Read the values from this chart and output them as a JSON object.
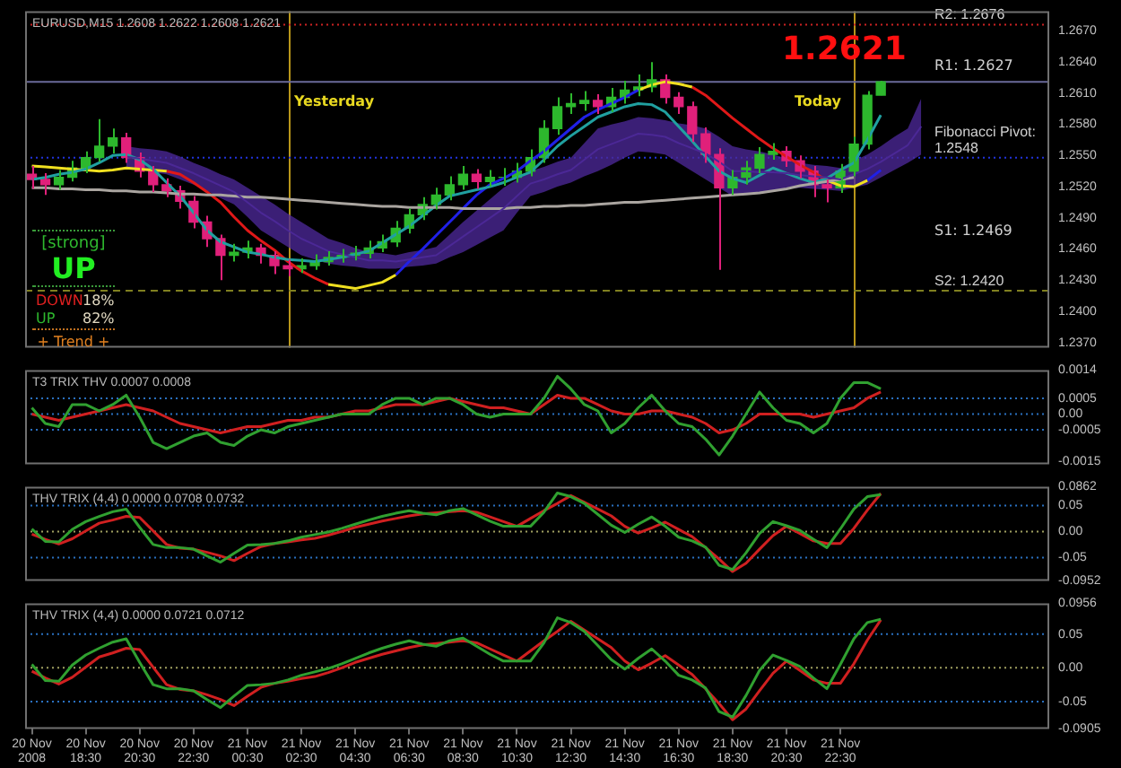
{
  "chart_data": [
    {
      "type": "candlestick",
      "title": "EURUSD,M15 1.2608 1.2622 1.2608 1.2621",
      "categories": [
        null,
        null,
        null,
        null,
        null,
        null,
        null,
        null,
        null,
        null,
        null,
        null,
        null,
        null,
        null,
        null,
        null,
        null,
        null,
        null,
        null,
        null,
        null,
        null,
        null,
        null,
        null,
        null,
        null,
        null,
        null,
        null,
        null,
        null,
        null,
        null,
        null,
        null,
        null,
        null,
        null,
        null,
        null,
        null,
        null,
        null,
        null,
        null,
        null,
        null,
        null,
        null,
        null,
        null,
        null,
        null,
        null,
        null,
        null,
        null,
        null,
        null,
        null,
        null,
        null,
        null,
        null,
        null,
        null,
        null,
        null,
        null,
        null,
        null,
        null,
        null
      ],
      "ohlc": [
        [
          1.2532,
          1.254,
          1.2518,
          1.2527
        ],
        [
          1.2527,
          1.2533,
          1.2512,
          1.2522
        ],
        [
          1.2522,
          1.2536,
          1.2517,
          1.2529
        ],
        [
          1.2529,
          1.2545,
          1.2525,
          1.2538
        ],
        [
          1.2538,
          1.2554,
          1.2533,
          1.2548
        ],
        [
          1.2548,
          1.2585,
          1.2544,
          1.2559
        ],
        [
          1.2559,
          1.2576,
          1.2552,
          1.2567
        ],
        [
          1.2567,
          1.2572,
          1.2543,
          1.2548
        ],
        [
          1.2548,
          1.2553,
          1.2529,
          1.2535
        ],
        [
          1.2535,
          1.254,
          1.2515,
          1.2522
        ],
        [
          1.2522,
          1.2528,
          1.251,
          1.2516
        ],
        [
          1.2516,
          1.2521,
          1.2499,
          1.2506
        ],
        [
          1.2506,
          1.2511,
          1.248,
          1.2486
        ],
        [
          1.2486,
          1.2492,
          1.2462,
          1.247
        ],
        [
          1.247,
          1.2474,
          1.243,
          1.2454
        ],
        [
          1.2454,
          1.2465,
          1.2448,
          1.2457
        ],
        [
          1.2457,
          1.2468,
          1.2451,
          1.2461
        ],
        [
          1.2461,
          1.2465,
          1.2446,
          1.2454
        ],
        [
          1.2454,
          1.2458,
          1.2436,
          1.2444
        ],
        [
          1.2444,
          1.245,
          1.2434,
          1.2441
        ],
        [
          1.2441,
          1.2451,
          1.2437,
          1.2444
        ],
        [
          1.2444,
          1.2455,
          1.244,
          1.2448
        ],
        [
          1.2448,
          1.2458,
          1.2444,
          1.2452
        ],
        [
          1.2452,
          1.246,
          1.2447,
          1.2454
        ],
        [
          1.2454,
          1.2463,
          1.2449,
          1.2456
        ],
        [
          1.2456,
          1.2468,
          1.2451,
          1.2461
        ],
        [
          1.2461,
          1.2474,
          1.2457,
          1.2467
        ],
        [
          1.2467,
          1.2487,
          1.2462,
          1.248
        ],
        [
          1.248,
          1.2499,
          1.2475,
          1.2493
        ],
        [
          1.2493,
          1.251,
          1.2488,
          1.2503
        ],
        [
          1.2503,
          1.2519,
          1.2498,
          1.2512
        ],
        [
          1.2512,
          1.253,
          1.2507,
          1.2522
        ],
        [
          1.2522,
          1.254,
          1.2517,
          1.2532
        ],
        [
          1.2532,
          1.2537,
          1.2518,
          1.2525
        ],
        [
          1.2525,
          1.2536,
          1.252,
          1.2529
        ],
        [
          1.2529,
          1.2538,
          1.2521,
          1.2529
        ],
        [
          1.2529,
          1.2543,
          1.2524,
          1.2535
        ],
        [
          1.2535,
          1.2556,
          1.253,
          1.2548
        ],
        [
          1.2548,
          1.2584,
          1.2543,
          1.2576
        ],
        [
          1.2576,
          1.2606,
          1.257,
          1.2597
        ],
        [
          1.2597,
          1.261,
          1.259,
          1.26
        ],
        [
          1.26,
          1.2612,
          1.2593,
          1.2603
        ],
        [
          1.2603,
          1.2609,
          1.259,
          1.2597
        ],
        [
          1.2597,
          1.2615,
          1.2592,
          1.2606
        ],
        [
          1.2606,
          1.2622,
          1.26,
          1.2613
        ],
        [
          1.2613,
          1.2628,
          1.2607,
          1.2616
        ],
        [
          1.2616,
          1.264,
          1.2611,
          1.2623
        ],
        [
          1.2623,
          1.2628,
          1.26,
          1.2606
        ],
        [
          1.2606,
          1.2611,
          1.259,
          1.2597
        ],
        [
          1.2597,
          1.2602,
          1.2563,
          1.2571
        ],
        [
          1.2571,
          1.2577,
          1.2543,
          1.2551
        ],
        [
          1.2551,
          1.2557,
          1.244,
          1.2519
        ],
        [
          1.2519,
          1.2536,
          1.2512,
          1.2529
        ],
        [
          1.2529,
          1.2545,
          1.2522,
          1.2538
        ],
        [
          1.2538,
          1.2558,
          1.2533,
          1.2551
        ],
        [
          1.2551,
          1.2562,
          1.2546,
          1.2554
        ],
        [
          1.2554,
          1.2559,
          1.2539,
          1.2545
        ],
        [
          1.2545,
          1.255,
          1.2528,
          1.2535
        ],
        [
          1.2535,
          1.254,
          1.251,
          1.2522
        ],
        [
          1.2522,
          1.2527,
          1.2505,
          1.2519
        ],
        [
          1.2519,
          1.2542,
          1.2514,
          1.2535
        ],
        [
          1.2535,
          1.2568,
          1.253,
          1.2561
        ],
        [
          1.2561,
          1.2612,
          1.2556,
          1.2608
        ],
        [
          1.2608,
          1.2622,
          1.2608,
          1.2621
        ],
        null,
        null,
        null,
        null,
        null,
        null,
        null,
        null,
        null,
        null,
        null,
        null
      ],
      "colors": [
        "#e0207a",
        "#e0207a",
        "#2db82d",
        "#2db82d",
        "#2db82d",
        "#2db82d",
        "#2db82d",
        "#e0207a",
        "#e0207a",
        "#e0207a",
        "#e0207a",
        "#e0207a",
        "#e0207a",
        "#e0207a",
        "#e0207a",
        "#2db82d",
        "#2db82d",
        "#e0207a",
        "#e0207a",
        "#e0207a",
        "#2db82d",
        "#2db82d",
        "#2db82d",
        "#2db82d",
        "#2db82d",
        "#2db82d",
        "#2db82d",
        "#2db82d",
        "#2db82d",
        "#2db82d",
        "#2db82d",
        "#2db82d",
        "#2db82d",
        "#e0207a",
        "#2db82d",
        "#2db82d",
        "#2db82d",
        "#2db82d",
        "#2db82d",
        "#2db82d",
        "#2db82d",
        "#2db82d",
        "#e0207a",
        "#2db82d",
        "#2db82d",
        "#2db82d",
        "#2db82d",
        "#e0207a",
        "#e0207a",
        "#e0207a",
        "#e0207a",
        "#e0207a",
        "#2db82d",
        "#2db82d",
        "#2db82d",
        "#2db82d",
        "#e0207a",
        "#e0207a",
        "#e0207a",
        "#e0207a",
        "#2db82d",
        "#2db82d",
        "#2db82d",
        "#2db82d",
        null,
        null,
        null,
        null,
        null,
        null,
        null,
        null,
        null,
        null,
        null,
        null
      ],
      "series": [
        {
          "type": "line",
          "color": "#4b2896",
          "values": [
            null,
            null,
            null,
            null,
            null,
            null,
            null,
            1.2549,
            1.2547,
            1.2545,
            1.2543,
            1.2538,
            1.2533,
            1.2527,
            1.2521,
            1.2515,
            1.2505,
            1.2495,
            1.2487,
            1.2478,
            1.247,
            1.2464,
            1.2458,
            1.2455,
            1.2452,
            1.2449,
            1.2449,
            1.2448,
            1.245,
            1.2452,
            1.2454,
            1.2463,
            1.2472,
            1.2481,
            1.249,
            1.2499,
            1.2511,
            1.2523,
            1.2527,
            1.2532,
            1.2536,
            1.2546,
            1.2556,
            1.2561,
            1.2566,
            1.2571,
            1.257,
            1.2568,
            1.2562,
            1.2557,
            1.2552,
            1.2544,
            1.2535,
            1.2535,
            1.2534,
            1.2534,
            1.2533,
            1.2531,
            1.253,
            1.2529,
            1.2527,
            1.2532,
            1.2537,
            1.2544,
            1.2552,
            1.256,
            1.2578,
            null,
            null,
            null,
            null,
            null,
            null,
            null,
            null,
            null
          ],
          "lower": [
            null,
            null,
            null,
            null,
            null,
            null,
            null,
            1.2538,
            1.2536,
            1.2534,
            1.2532,
            1.2527,
            1.2522,
            1.2516,
            1.2509,
            1.2503,
            1.2491,
            1.2478,
            1.247,
            1.2462,
            1.2454,
            1.245,
            1.2446,
            1.2444,
            1.2443,
            1.2441,
            1.2441,
            1.2441,
            1.2443,
            1.2444,
            1.2446,
            1.2452,
            1.2457,
            1.2464,
            1.2471,
            1.2478,
            1.2495,
            1.2511,
            1.2515,
            1.252,
            1.2524,
            1.253,
            1.2535,
            1.2541,
            1.2548,
            1.2554,
            1.2553,
            1.2551,
            1.2543,
            1.2535,
            1.2527,
            1.2519,
            1.2511,
            1.2513,
            1.2514,
            1.2516,
            1.2518,
            1.2519,
            1.2518,
            1.2517,
            1.2516,
            1.2519,
            1.2522,
            1.2529,
            1.2536,
            1.2543,
            1.2551,
            null,
            null,
            null,
            null,
            null,
            null,
            null,
            null,
            null
          ],
          "upper": [
            null,
            null,
            null,
            null,
            null,
            null,
            null,
            1.2559,
            1.2557,
            1.2556,
            1.2554,
            1.2549,
            1.2543,
            1.2538,
            1.2532,
            1.2527,
            1.2519,
            1.2511,
            1.2503,
            1.2494,
            1.2486,
            1.2478,
            1.247,
            1.2466,
            1.2461,
            1.2457,
            1.2456,
            1.2454,
            1.2457,
            1.2459,
            1.2462,
            1.2474,
            1.2486,
            1.2497,
            1.2508,
            1.2519,
            1.2527,
            1.2535,
            1.2539,
            1.2544,
            1.2548,
            1.2562,
            1.2576,
            1.258,
            1.2583,
            1.2587,
            1.2586,
            1.2584,
            1.2581,
            1.2579,
            1.2576,
            1.2568,
            1.2559,
            1.2556,
            1.2554,
            1.2551,
            1.2547,
            1.2543,
            1.2541,
            1.254,
            1.2538,
            1.2545,
            1.2551,
            1.2559,
            1.2568,
            1.2576,
            1.2605,
            null,
            null,
            null,
            null,
            null,
            null,
            null,
            null,
            null
          ]
        },
        {
          "type": "line",
          "color": "#aaa5a0",
          "values": [
            1.2519,
            1.2519,
            1.2518,
            1.2518,
            1.2517,
            1.2517,
            1.2516,
            1.2516,
            1.2515,
            1.2515,
            1.2514,
            1.2513,
            1.2513,
            1.2512,
            1.2512,
            1.2511,
            1.251,
            1.251,
            1.2509,
            1.2508,
            1.2507,
            1.2506,
            1.2505,
            1.2504,
            1.2503,
            1.2502,
            1.2501,
            1.2501,
            1.25,
            1.25,
            1.25,
            1.25,
            1.2499,
            1.2499,
            1.2499,
            1.2499,
            1.25,
            1.25,
            1.2501,
            1.2501,
            1.2502,
            1.2502,
            1.2503,
            1.2504,
            1.2505,
            1.2505,
            1.2506,
            1.2507,
            1.2508,
            1.2509,
            1.251,
            1.2511,
            1.2512,
            1.2513,
            1.2514,
            1.2516,
            1.2518,
            1.2521,
            1.2523,
            1.2525,
            1.2527,
            1.2529,
            null,
            null,
            null,
            null,
            null,
            null,
            null,
            null,
            null,
            null,
            null,
            null,
            null,
            null
          ]
        },
        {
          "type": "line",
          "color": "#20a0a0",
          "values": [
            1.2527,
            1.2529,
            1.2532,
            1.2534,
            1.2537,
            1.2543,
            1.255,
            1.2551,
            1.2546,
            1.2537,
            1.2524,
            1.2511,
            1.2495,
            1.2478,
            1.2467,
            1.2462,
            1.2457,
            1.2455,
            1.2452,
            1.245,
            1.2449,
            1.2448,
            1.245,
            1.2452,
            1.2455,
            1.2458,
            1.2466,
            1.2474,
            1.2482,
            1.2492,
            1.2502,
            1.2511,
            1.2514,
            1.2517,
            1.252,
            1.2524,
            1.2529,
            1.2534,
            1.2546,
            1.2559,
            1.2569,
            1.2578,
            1.2587,
            1.2592,
            1.2597,
            1.26,
            1.2599,
            1.2592,
            1.2578,
            1.2564,
            1.2549,
            1.2535,
            1.2528,
            1.2524,
            1.2531,
            1.2538,
            1.2533,
            1.2528,
            1.2524,
            1.2528,
            1.2536,
            1.2543,
            1.2565,
            1.2589,
            null,
            null,
            null,
            null,
            null,
            null,
            null,
            null,
            null,
            null,
            null,
            null
          ]
        },
        {
          "type": "line",
          "color": "#f0e020",
          "values": [
            1.254,
            1.2539,
            1.2538,
            1.2537,
            1.2536,
            1.2535,
            1.2536,
            1.2538,
            1.2537,
            1.2536,
            1.2535,
            null,
            null,
            null,
            null,
            null,
            null,
            null,
            null,
            null,
            null,
            null,
            1.2426,
            1.2424,
            1.2422,
            1.2425,
            1.2428,
            1.2435,
            null,
            null,
            null,
            null,
            null,
            null,
            null,
            null,
            null,
            null,
            null,
            null,
            null,
            null,
            null,
            null,
            null,
            1.2613,
            1.2618,
            1.2621,
            1.2619,
            1.2616,
            null,
            null,
            null,
            null,
            null,
            null,
            null,
            null,
            null,
            1.2526,
            1.2521,
            1.252,
            1.2526,
            null,
            null,
            null,
            null,
            null,
            null,
            null,
            null,
            null,
            null,
            null,
            null,
            null
          ]
        },
        {
          "type": "line",
          "color": "#e01818",
          "values": [
            null,
            null,
            null,
            null,
            null,
            null,
            null,
            null,
            null,
            null,
            1.2535,
            1.2532,
            1.2524,
            1.2515,
            1.2505,
            1.2491,
            1.2478,
            1.2468,
            1.2459,
            1.2448,
            1.2439,
            1.2432,
            1.2426,
            null,
            null,
            null,
            null,
            null,
            null,
            null,
            null,
            null,
            null,
            null,
            null,
            null,
            null,
            null,
            null,
            null,
            null,
            null,
            null,
            null,
            null,
            null,
            null,
            null,
            null,
            1.2616,
            1.2608,
            1.2597,
            1.2586,
            1.2576,
            1.2566,
            1.2557,
            1.2549,
            1.2541,
            1.2534,
            1.2526,
            null,
            null,
            null,
            null,
            null,
            null,
            null,
            null,
            null,
            null,
            null,
            null,
            null,
            null,
            null,
            null
          ]
        },
        {
          "type": "line",
          "color": "#2020e8",
          "values": [
            null,
            null,
            null,
            null,
            null,
            null,
            null,
            null,
            null,
            null,
            null,
            null,
            null,
            null,
            null,
            null,
            null,
            null,
            null,
            null,
            null,
            null,
            null,
            null,
            null,
            null,
            null,
            1.2435,
            1.2448,
            1.246,
            1.2473,
            1.2486,
            1.2499,
            1.2512,
            1.2522,
            1.2528,
            1.2535,
            1.2545,
            1.2554,
            1.2565,
            1.2576,
            1.2587,
            1.2594,
            1.26,
            1.2606,
            1.2613,
            null,
            null,
            null,
            null,
            null,
            null,
            null,
            null,
            null,
            null,
            null,
            null,
            null,
            null,
            null,
            null,
            1.2526,
            1.2536,
            null,
            null,
            null,
            null,
            null,
            null,
            null,
            null,
            null,
            null,
            null,
            null
          ]
        }
      ],
      "ylim": [
        1.2365,
        1.2689
      ],
      "yticks": [
        {
          "value": 1.237,
          "label": "1.2370"
        },
        {
          "value": 1.24,
          "label": "1.2400"
        },
        {
          "value": 1.243,
          "label": "1.2430"
        },
        {
          "value": 1.246,
          "label": "1.2460"
        },
        {
          "value": 1.249,
          "label": "1.2490"
        },
        {
          "value": 1.252,
          "label": "1.2520"
        },
        {
          "value": 1.255,
          "label": "1.2550"
        },
        {
          "value": 1.258,
          "label": "1.2580"
        },
        {
          "value": 1.261,
          "label": "1.2610"
        },
        {
          "value": 1.264,
          "label": "1.2640"
        },
        {
          "value": 1.267,
          "label": "1.2670"
        }
      ],
      "tick_labels": "y",
      "ref_lines": [
        {
          "axis": "y",
          "value": 1.2621,
          "color": "#6a6a9a"
        },
        {
          "axis": "y",
          "value": 1.2676,
          "label": "R2: 1.2676",
          "color": "#cc2222",
          "line_style": "dotted"
        },
        {
          "axis": "y",
          "value": 1.2548,
          "label": "Fibonacci Pivot: 1.2548",
          "color": "#2233dd",
          "line_style": "dotted"
        },
        {
          "axis": "y",
          "value": 1.242,
          "label": "S2: 1.2420",
          "color": "#808020",
          "line_style": "dashed"
        }
      ],
      "annotations": [
        "[strong]",
        "UP",
        "DOWN",
        "18%",
        "UP",
        "82%",
        "+ Trend +",
        "1.2621",
        "R1: 1.2627",
        "S1: 1.2469",
        "Yesterday",
        "Today"
      ]
    },
    {
      "type": "line",
      "title": "T3 TRIX THV 0.0007 0.0008",
      "categories": [
        null,
        null,
        null,
        null,
        null,
        null,
        null,
        null,
        null,
        null,
        null,
        null,
        null,
        null,
        null,
        null,
        null,
        null,
        null,
        null,
        null,
        null,
        null,
        null,
        null,
        null,
        null,
        null,
        null,
        null,
        null,
        null,
        null,
        null,
        null,
        null,
        null,
        null,
        null,
        null,
        null,
        null,
        null,
        null,
        null,
        null,
        null,
        null,
        null,
        null,
        null,
        null,
        null,
        null,
        null,
        null,
        null,
        null,
        null,
        null,
        null,
        null,
        null,
        null,
        null,
        null,
        null,
        null,
        null,
        null,
        null,
        null,
        null,
        null,
        null,
        null
      ],
      "series": [
        {
          "color": "#30a030",
          "values": [
            0.0002,
            -0.0003,
            -0.0004,
            0.0003,
            0.0003,
            0.0001,
            0.0003,
            0.0006,
            -0.0001,
            -0.0009,
            -0.0011,
            -0.0009,
            -0.0007,
            -0.0006,
            -0.0009,
            -0.001,
            -0.0007,
            -0.0005,
            -0.0006,
            -0.0004,
            -0.0003,
            -0.0002,
            -0.0001,
            0.0,
            0.0,
            0.0,
            0.0003,
            0.0005,
            0.0005,
            0.0003,
            0.0005,
            0.0005,
            0.0003,
            0.0,
            -0.0001,
            0.0,
            0.0,
            0.0,
            0.0005,
            0.0012,
            0.0008,
            0.0003,
            0.0001,
            -0.0006,
            -0.0003,
            0.0002,
            0.0006,
            0.0001,
            -0.0003,
            -0.0004,
            -0.0008,
            -0.0013,
            -0.0007,
            0.0,
            0.0007,
            0.0002,
            -0.0002,
            -0.0003,
            -0.0006,
            -0.0003,
            0.0005,
            0.001,
            0.001,
            0.0008,
            null,
            null,
            null,
            null,
            null,
            null,
            null,
            null,
            null,
            null,
            null,
            null
          ]
        },
        {
          "color": "#d02020",
          "values": [
            0.0,
            -0.0001,
            -0.0002,
            -0.0001,
            0.0,
            0.0001,
            0.0002,
            0.0003,
            0.0002,
            0.0001,
            -0.0001,
            -0.0003,
            -0.0004,
            -0.0005,
            -0.0006,
            -0.0005,
            -0.0004,
            -0.0004,
            -0.0003,
            -0.0002,
            -0.0002,
            -0.0001,
            -0.0001,
            0.0,
            0.0001,
            0.0001,
            0.0002,
            0.0003,
            0.0003,
            0.0003,
            0.0004,
            0.0005,
            0.0004,
            0.0003,
            0.0002,
            0.0002,
            0.0001,
            0.0,
            0.0003,
            0.0006,
            0.0005,
            0.0005,
            0.0003,
            0.0001,
            0.0,
            0.0,
            0.0001,
            0.0001,
            0.0,
            -0.0001,
            -0.0003,
            -0.0006,
            -0.0005,
            -0.0003,
            0.0,
            0.0,
            0.0,
            0.0,
            -0.0001,
            0.0,
            0.0001,
            0.0002,
            0.0005,
            0.0007,
            null,
            null,
            null,
            null,
            null,
            null,
            null,
            null,
            null,
            null,
            null,
            null
          ]
        }
      ],
      "ylim": [
        -0.0016,
        0.0014
      ],
      "yticks": [
        0.0014,
        0.0005,
        {
          "value": 0,
          "label": "0.00"
        },
        -0.0005,
        -0.0015
      ],
      "tick_labels": "y",
      "ref_lines": [
        {
          "axis": "y",
          "value": 0.0005,
          "color": "#2a70c0",
          "line_style": "dotted"
        },
        {
          "axis": "y",
          "value": 0,
          "color": "#2a70c0",
          "line_style": "dotted"
        },
        {
          "axis": "y",
          "value": -0.0005,
          "color": "#2a70c0",
          "line_style": "dotted"
        }
      ]
    },
    {
      "type": "line",
      "title": "THV TRIX (4,4) 0.0000 0.0708 0.0732",
      "categories": [
        null,
        null,
        null,
        null,
        null,
        null,
        null,
        null,
        null,
        null,
        null,
        null,
        null,
        null,
        null,
        null,
        null,
        null,
        null,
        null,
        null,
        null,
        null,
        null,
        null,
        null,
        null,
        null,
        null,
        null,
        null,
        null,
        null,
        null,
        null,
        null,
        null,
        null,
        null,
        null,
        null,
        null,
        null,
        null,
        null,
        null,
        null,
        null,
        null,
        null,
        null,
        null,
        null,
        null,
        null,
        null,
        null,
        null,
        null,
        null,
        null,
        null,
        null,
        null,
        null,
        null,
        null,
        null,
        null,
        null,
        null,
        null,
        null,
        null,
        null,
        null
      ],
      "series": [
        {
          "color": "#30a030",
          "values": [
            0.005,
            -0.019,
            -0.02,
            0.004,
            0.019,
            0.029,
            0.038,
            0.043,
            0.008,
            -0.025,
            -0.031,
            -0.031,
            -0.034,
            -0.047,
            -0.059,
            -0.042,
            -0.026,
            -0.025,
            -0.023,
            -0.018,
            -0.011,
            -0.006,
            -0.001,
            0.006,
            0.014,
            0.022,
            0.029,
            0.035,
            0.04,
            0.035,
            0.032,
            0.04,
            0.044,
            0.032,
            0.02,
            0.01,
            0.01,
            0.01,
            0.037,
            0.074,
            0.067,
            0.054,
            0.033,
            0.012,
            -0.002,
            0.014,
            0.028,
            0.01,
            -0.011,
            -0.018,
            -0.03,
            -0.065,
            -0.073,
            -0.041,
            -0.004,
            0.019,
            0.011,
            0.002,
            -0.015,
            -0.031,
            0.005,
            0.043,
            0.067,
            0.071,
            null,
            null,
            null,
            null,
            null,
            null,
            null,
            null,
            null,
            null,
            null,
            null
          ]
        },
        {
          "color": "#d02020",
          "values": [
            -0.005,
            -0.015,
            -0.024,
            -0.014,
            0.001,
            0.016,
            0.022,
            0.029,
            0.027,
            0.001,
            -0.025,
            -0.032,
            -0.034,
            -0.04,
            -0.047,
            -0.056,
            -0.042,
            -0.029,
            -0.023,
            -0.02,
            -0.016,
            -0.013,
            -0.007,
            0.0,
            0.008,
            0.014,
            0.02,
            0.025,
            0.03,
            0.034,
            0.036,
            0.038,
            0.04,
            0.037,
            0.028,
            0.019,
            0.01,
            0.025,
            0.04,
            0.054,
            0.069,
            0.056,
            0.043,
            0.03,
            0.01,
            -0.003,
            0.007,
            0.018,
            0.004,
            -0.01,
            -0.031,
            -0.053,
            -0.077,
            -0.061,
            -0.034,
            -0.008,
            0.01,
            -0.004,
            -0.018,
            -0.023,
            -0.023,
            0.006,
            0.041,
            0.073,
            null,
            null,
            null,
            null,
            null,
            null,
            null,
            null,
            null,
            null,
            null,
            null
          ]
        }
      ],
      "ylim": [
        -0.0952,
        0.0862
      ],
      "yticks": [
        0.0862,
        0.05,
        {
          "value": 0,
          "label": "0.00"
        },
        -0.05,
        -0.0952
      ],
      "tick_labels": "y",
      "ref_lines": [
        {
          "axis": "y",
          "value": 0.05,
          "color": "#2a70c0",
          "line_style": "dotted"
        },
        {
          "axis": "y",
          "value": 0,
          "color": "#a0a060",
          "line_style": "dotted"
        },
        {
          "axis": "y",
          "value": -0.05,
          "color": "#2a70c0",
          "line_style": "dotted"
        }
      ]
    },
    {
      "type": "line",
      "title": "THV TRIX (4,4) 0.0000 0.0721 0.0712",
      "categories": [
        "20 Nov 2008",
        null,
        null,
        null,
        "20 Nov 18:30",
        null,
        null,
        null,
        "20 Nov 20:30",
        null,
        null,
        null,
        "20 Nov 22:30",
        null,
        null,
        null,
        "21 Nov 00:30",
        null,
        null,
        null,
        "21 Nov 02:30",
        null,
        null,
        null,
        "21 Nov 04:30",
        null,
        null,
        null,
        "21 Nov 06:30",
        null,
        null,
        null,
        "21 Nov 08:30",
        null,
        null,
        null,
        "21 Nov 10:30",
        null,
        null,
        null,
        "21 Nov 12:30",
        null,
        null,
        null,
        "21 Nov 14:30",
        null,
        null,
        null,
        "21 Nov 16:30",
        null,
        null,
        null,
        "21 Nov 18:30",
        null,
        null,
        null,
        "21 Nov 20:30",
        null,
        null,
        null,
        "21 Nov 22:30",
        null,
        null,
        null,
        null,
        null,
        null,
        null,
        null,
        null,
        null,
        null,
        null,
        null,
        null,
        null
      ],
      "series": [
        {
          "color": "#30a030",
          "values": [
            0.005,
            -0.019,
            -0.02,
            0.004,
            0.019,
            0.029,
            0.038,
            0.043,
            0.008,
            -0.025,
            -0.031,
            -0.031,
            -0.034,
            -0.047,
            -0.059,
            -0.042,
            -0.026,
            -0.025,
            -0.023,
            -0.018,
            -0.011,
            -0.006,
            -0.001,
            0.006,
            0.014,
            0.022,
            0.029,
            0.035,
            0.04,
            0.035,
            0.032,
            0.04,
            0.044,
            0.032,
            0.02,
            0.01,
            0.01,
            0.01,
            0.037,
            0.074,
            0.067,
            0.054,
            0.033,
            0.012,
            -0.002,
            0.014,
            0.028,
            0.01,
            -0.011,
            -0.018,
            -0.03,
            -0.065,
            -0.073,
            -0.041,
            -0.004,
            0.019,
            0.011,
            0.002,
            -0.015,
            -0.031,
            0.005,
            0.043,
            0.067,
            0.072,
            null,
            null,
            null,
            null,
            null,
            null,
            null,
            null,
            null,
            null,
            null,
            null
          ]
        },
        {
          "color": "#d02020",
          "values": [
            -0.005,
            -0.015,
            -0.024,
            -0.014,
            0.001,
            0.016,
            0.022,
            0.029,
            0.027,
            0.001,
            -0.025,
            -0.032,
            -0.034,
            -0.04,
            -0.047,
            -0.056,
            -0.042,
            -0.029,
            -0.023,
            -0.02,
            -0.016,
            -0.013,
            -0.007,
            0.0,
            0.008,
            0.014,
            0.02,
            0.025,
            0.03,
            0.034,
            0.036,
            0.038,
            0.04,
            0.037,
            0.028,
            0.019,
            0.01,
            0.025,
            0.04,
            0.054,
            0.069,
            0.056,
            0.043,
            0.03,
            0.01,
            -0.003,
            0.007,
            0.018,
            0.004,
            -0.01,
            -0.031,
            -0.053,
            -0.077,
            -0.061,
            -0.034,
            -0.008,
            0.01,
            -0.004,
            -0.018,
            -0.023,
            -0.023,
            0.006,
            0.041,
            0.071,
            null,
            null,
            null,
            null,
            null,
            null,
            null,
            null,
            null,
            null,
            null,
            null
          ]
        }
      ],
      "ylim": [
        -0.0905,
        0.0956
      ],
      "yticks": [
        0.0956,
        0.05,
        {
          "value": 0,
          "label": "0.00"
        },
        -0.05,
        -0.0905
      ],
      "ref_lines": [
        {
          "axis": "y",
          "value": 0.05,
          "color": "#2a70c0",
          "line_style": "dotted"
        },
        {
          "axis": "y",
          "value": 0,
          "color": "#a0a060",
          "line_style": "dotted"
        },
        {
          "axis": "y",
          "value": -0.05,
          "color": "#2a70c0",
          "line_style": "dotted"
        }
      ]
    }
  ]
}
